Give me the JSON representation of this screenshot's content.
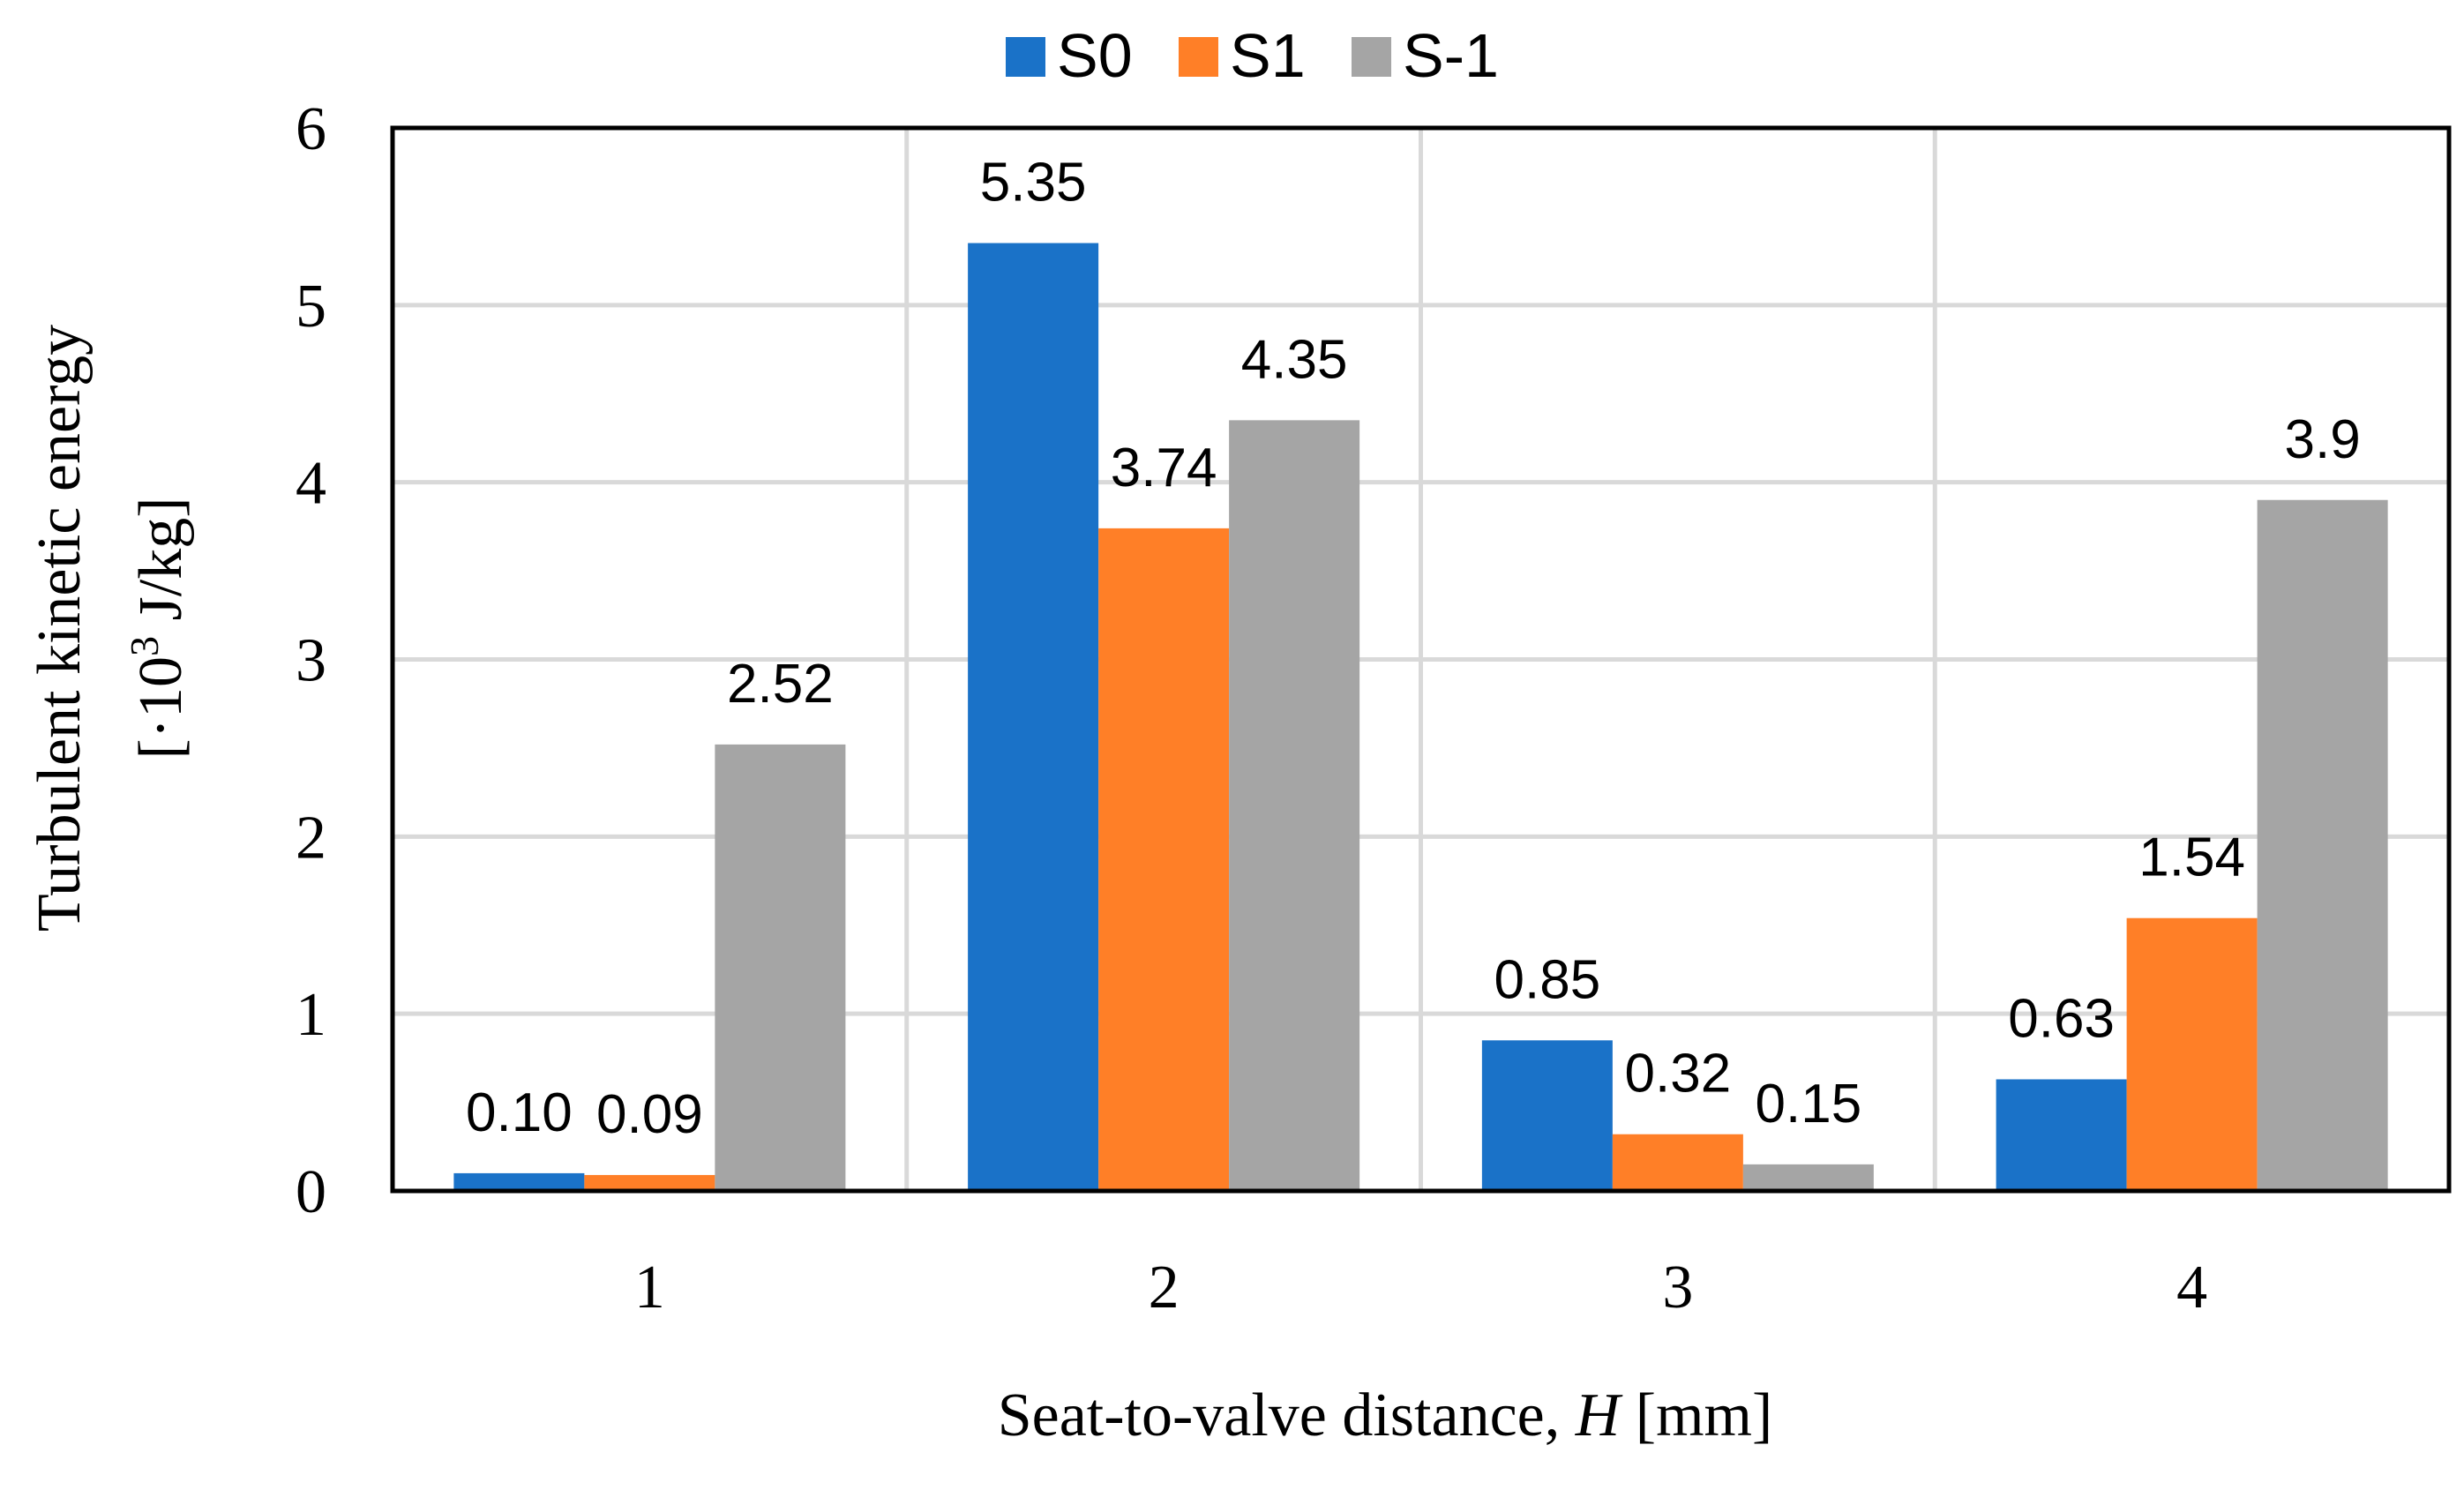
{
  "chart_data": {
    "type": "bar",
    "title": "",
    "categories": [
      "1",
      "2",
      "3",
      "4"
    ],
    "series": [
      {
        "name": "S0",
        "color": "#1a72c8",
        "values": [
          0.1,
          5.35,
          0.85,
          0.63
        ],
        "labels": [
          "0.10",
          "5.35",
          "0.85",
          "0.63"
        ]
      },
      {
        "name": "S1",
        "color": "#ff7f27",
        "values": [
          0.09,
          3.74,
          0.32,
          1.54
        ],
        "labels": [
          "0.09",
          "3.74",
          "0.32",
          "1.54"
        ]
      },
      {
        "name": "S-1",
        "color": "#a5a5a5",
        "values": [
          2.52,
          4.35,
          0.15,
          3.9
        ],
        "labels": [
          "2.52",
          "4.35",
          "0.15",
          "3.9"
        ]
      }
    ],
    "ylim": [
      0,
      6
    ],
    "yticks": [
      "0",
      "1",
      "2",
      "3",
      "4",
      "5",
      "6"
    ],
    "ylabel_line1": "Turbulent kinetic energy",
    "ylabel_line2_prefix": "[·10",
    "ylabel_line2_sup": "3",
    "ylabel_line2_suffix": " J/kg]",
    "xlabel_prefix": "Seat-to-valve distance, ",
    "xlabel_var": "H",
    "xlabel_suffix": " [mm]",
    "grid": true,
    "legend_position": "top-center"
  }
}
